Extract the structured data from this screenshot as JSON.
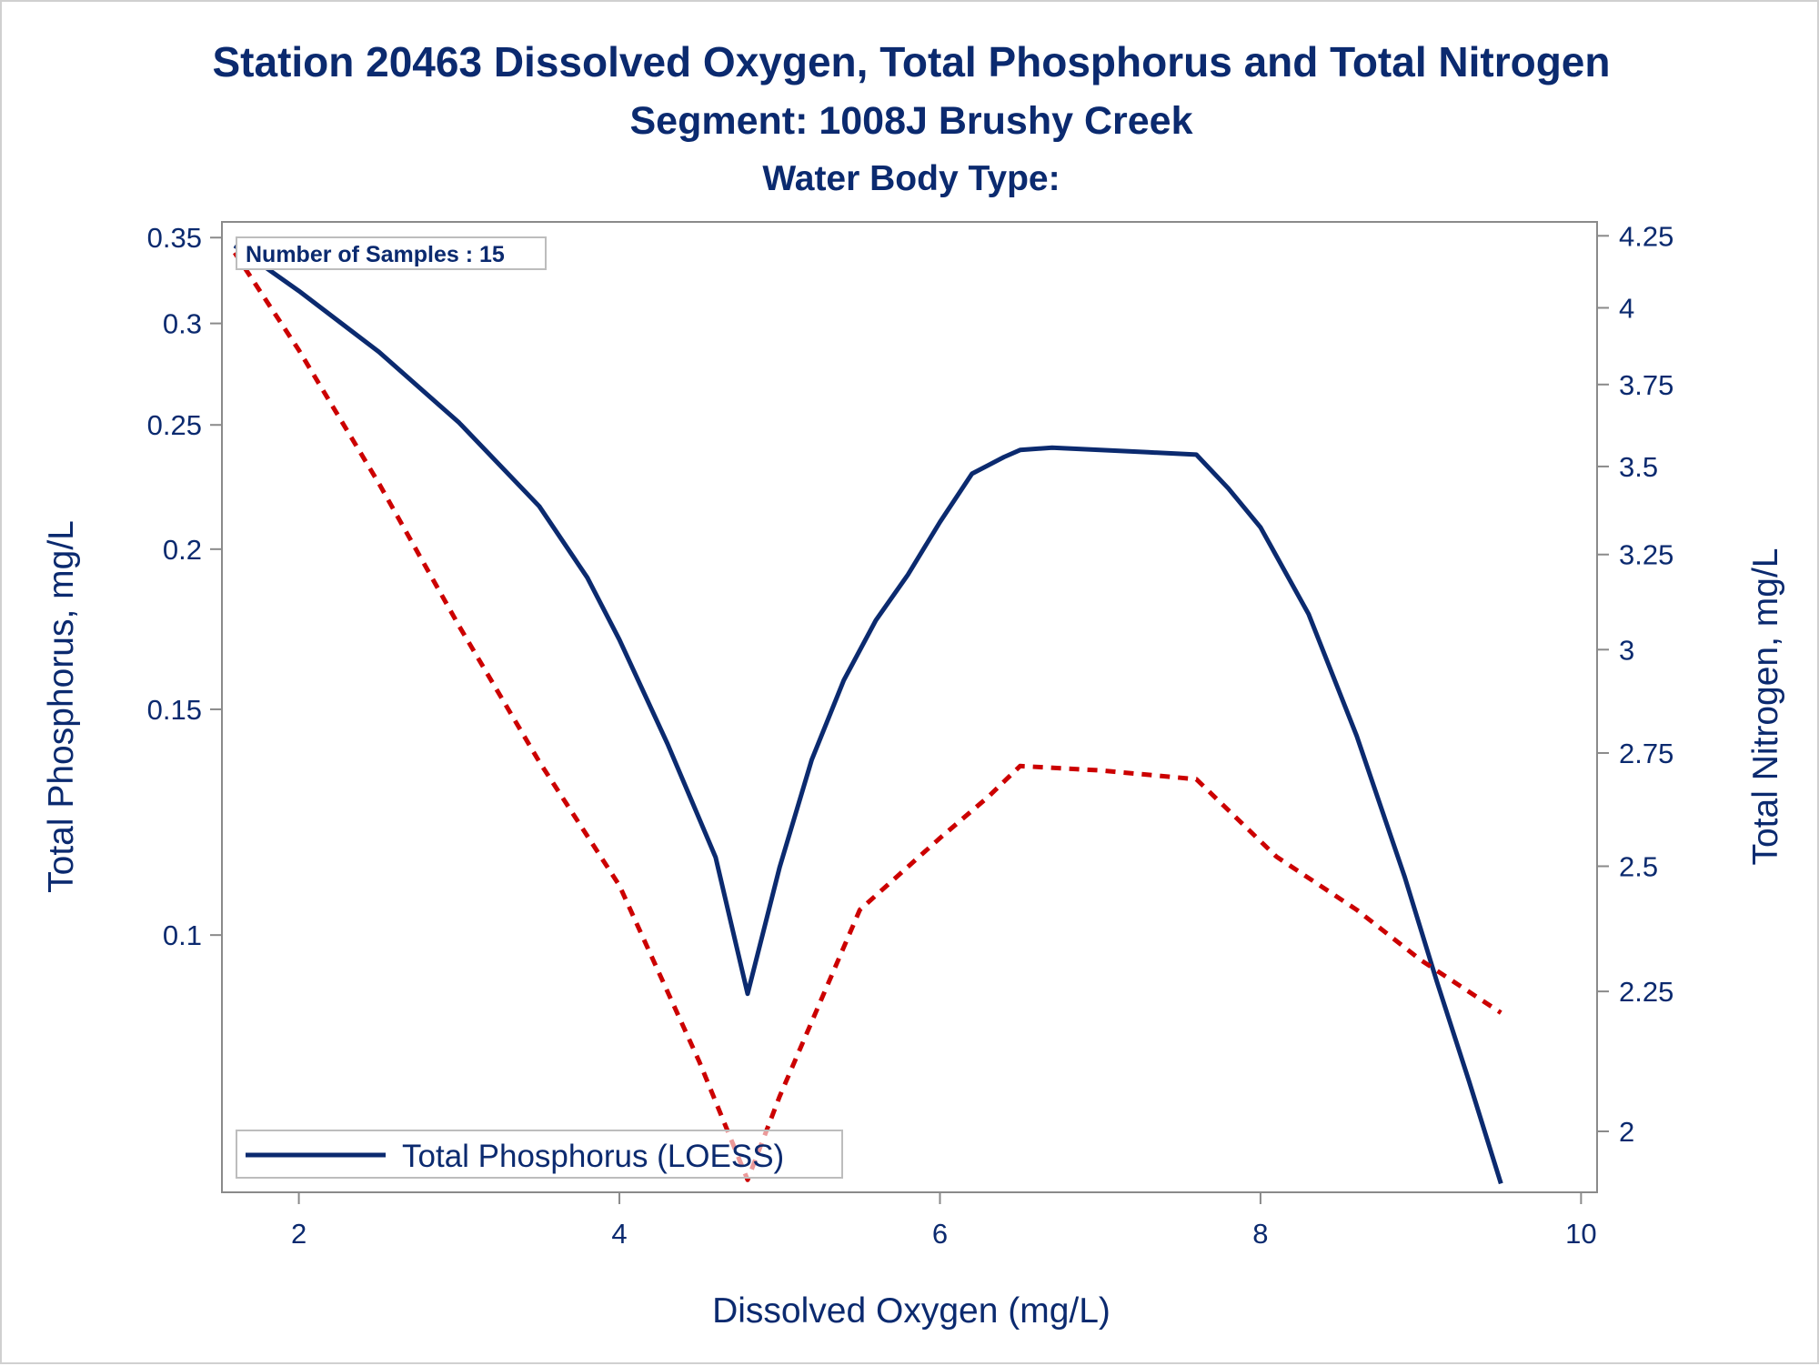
{
  "chart_data": {
    "type": "line",
    "title": "Station 20463  Dissolved Oxygen, Total Phosphorus and Total Nitrogen",
    "subtitle": "Segment: 1008J  Brushy Creek",
    "subtitle2": "Water Body Type:",
    "xlabel": "Dissolved Oxygen (mg/L)",
    "ylabel": "Total Phosphorus, mg/L",
    "y2label": "Total Nitrogen, mg/L",
    "xlim": [
      1.52,
      10.1
    ],
    "ylim": [
      0.063,
      0.36
    ],
    "y2lim": [
      1.9,
      4.3
    ],
    "yscale": "log",
    "y2scale": "log",
    "x_ticks": [
      "2",
      "4",
      "6",
      "8",
      "10"
    ],
    "y_ticks": [
      "0.1",
      "0.15",
      "0.2",
      "0.25",
      "0.3",
      "0.35"
    ],
    "y2_ticks": [
      "2",
      "2.25",
      "2.5",
      "2.75",
      "3",
      "3.25",
      "3.5",
      "3.75",
      "4",
      "4.25"
    ],
    "annotation": "Number of Samples : 15",
    "legend": {
      "label": "Total Phosphorus (LOESS)",
      "position": "bottom-left"
    },
    "grid": false,
    "colors": {
      "phosphorus": "#0b2a6f",
      "nitrogen": "#cc0000",
      "text": "#0b2a6f"
    },
    "series": [
      {
        "name": "Total Phosphorus (LOESS)",
        "axis": "left",
        "style": "solid",
        "x": [
          1.6,
          2.0,
          2.5,
          3.0,
          3.5,
          3.8,
          4.0,
          4.3,
          4.6,
          4.8,
          5.0,
          5.2,
          5.4,
          5.6,
          5.8,
          6.0,
          6.2,
          6.4,
          6.5,
          6.7,
          7.0,
          7.3,
          7.6,
          7.8,
          8.0,
          8.3,
          8.6,
          8.9,
          9.1,
          9.3,
          9.5
        ],
        "y": [
          0.345,
          0.318,
          0.285,
          0.251,
          0.216,
          0.19,
          0.17,
          0.141,
          0.115,
          0.09,
          0.113,
          0.137,
          0.158,
          0.176,
          0.191,
          0.21,
          0.229,
          0.236,
          0.239,
          0.24,
          0.239,
          0.238,
          0.237,
          0.223,
          0.208,
          0.178,
          0.143,
          0.111,
          0.092,
          0.077,
          0.064
        ]
      },
      {
        "name": "",
        "axis": "right",
        "style": "dashed",
        "x": [
          1.6,
          2.0,
          2.5,
          3.0,
          3.5,
          4.0,
          4.5,
          4.8,
          5.0,
          5.5,
          6.0,
          6.3,
          6.5,
          7.0,
          7.6,
          8.1,
          8.6,
          9.0,
          9.5
        ],
        "y": [
          4.19,
          3.86,
          3.45,
          3.06,
          2.73,
          2.46,
          2.12,
          1.92,
          2.06,
          2.41,
          2.56,
          2.65,
          2.72,
          2.71,
          2.69,
          2.52,
          2.41,
          2.31,
          2.21
        ]
      }
    ]
  }
}
